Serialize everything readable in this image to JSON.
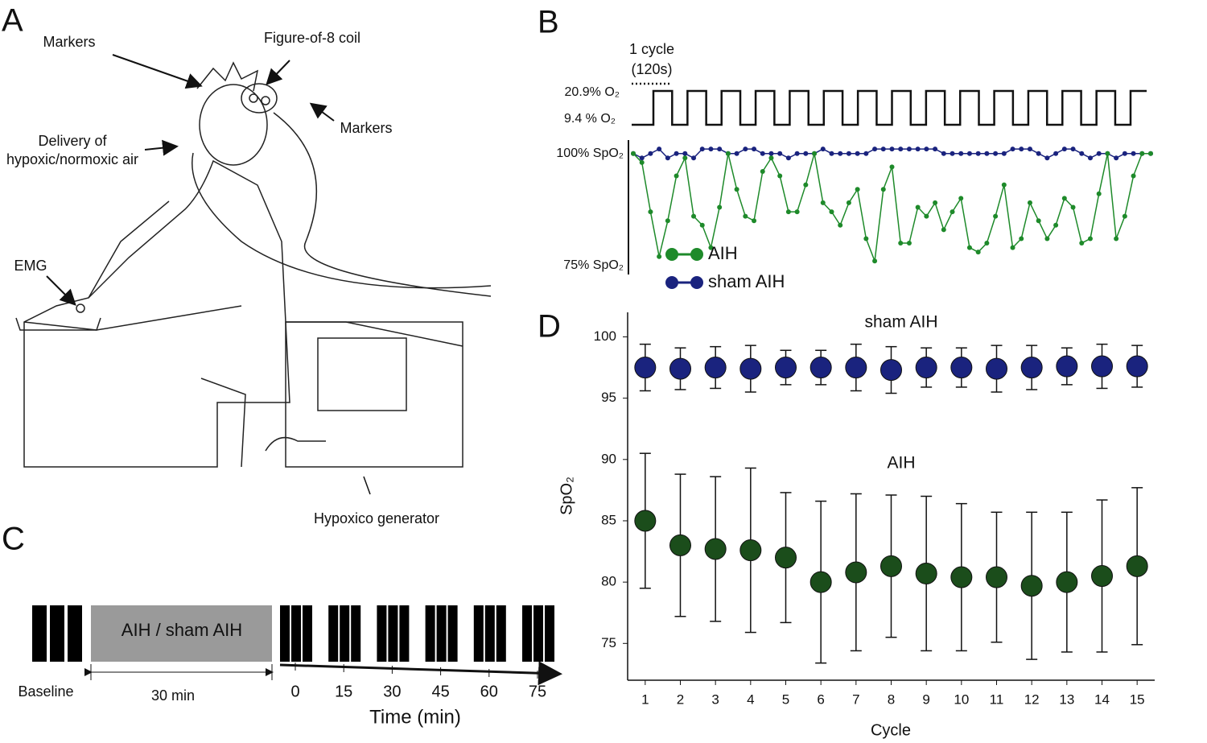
{
  "panel_a": {
    "letter": "A",
    "labels": [
      "Markers",
      "Figure-of-8  coil",
      "Markers",
      "Delivery  of",
      "hypoxic/normoxic air",
      "EMG",
      "Hypoxico generator"
    ]
  },
  "panel_c": {
    "letter": "C",
    "block_label": "AIH / sham AIH",
    "baseline": "Baseline",
    "duration": "30 min",
    "times": [
      "0",
      "15",
      "30",
      "45",
      "60",
      "75"
    ],
    "xlabel": "Time (min)"
  },
  "chart_data": [
    {
      "type": "line",
      "panel": "B",
      "annotations": [
        "1 cycle",
        "(120s)"
      ],
      "o2_labels": [
        "20.9% O₂",
        "9.4 % O₂"
      ],
      "cycles": 15,
      "ylim": [
        73,
        103
      ],
      "yticks": [
        {
          "value": 100,
          "label": "100% SpO₂"
        },
        {
          "value": 75,
          "label": "75% SpO₂"
        }
      ],
      "series": [
        {
          "name": "AIH",
          "color": "#1e8a2a",
          "values": [
            100,
            98,
            87,
            77,
            85,
            95,
            99,
            86,
            84,
            79,
            88,
            100,
            92,
            86,
            85,
            96,
            99,
            95,
            87,
            87,
            93,
            100,
            89,
            87,
            84,
            89,
            92,
            81,
            76,
            92,
            97,
            80,
            80,
            88,
            86,
            89,
            83,
            87,
            90,
            79,
            78,
            80,
            86,
            93,
            79,
            81,
            89,
            85,
            81,
            84,
            90,
            88,
            80,
            81,
            91,
            100,
            81,
            86,
            95,
            100,
            100
          ]
        },
        {
          "name": "sham AIH",
          "color": "#1a237e",
          "values": [
            100,
            99,
            100,
            101,
            99,
            100,
            100,
            99,
            101,
            101,
            101,
            100,
            100,
            101,
            101,
            100,
            100,
            100,
            99,
            100,
            100,
            100,
            101,
            100,
            100,
            100,
            100,
            100,
            101,
            101,
            101,
            101,
            101,
            101,
            101,
            101,
            100,
            100,
            100,
            100,
            100,
            100,
            100,
            100,
            101,
            101,
            101,
            100,
            99,
            100,
            101,
            101,
            100,
            99,
            100,
            100,
            99,
            100,
            100,
            100,
            100
          ]
        }
      ]
    },
    {
      "type": "errorscatter",
      "panel": "D",
      "x_label": "Cycle",
      "y_label": "SpO₂",
      "x": [
        1,
        2,
        3,
        4,
        5,
        6,
        7,
        8,
        9,
        10,
        11,
        12,
        13,
        14,
        15
      ],
      "xlim": [
        0.5,
        15.5
      ],
      "xticks": [
        1,
        2,
        3,
        4,
        5,
        6,
        7,
        8,
        9,
        10,
        11,
        12,
        13,
        14,
        15
      ],
      "ylim": [
        72,
        102
      ],
      "yticks": [
        75,
        80,
        85,
        90,
        95,
        100
      ],
      "series": [
        {
          "name": "sham AIH",
          "color": "#1a237e",
          "values": [
            97.5,
            97.4,
            97.5,
            97.4,
            97.5,
            97.5,
            97.5,
            97.3,
            97.5,
            97.5,
            97.4,
            97.5,
            97.6,
            97.6,
            97.6
          ],
          "errors": [
            1.9,
            1.7,
            1.7,
            1.9,
            1.4,
            1.4,
            1.9,
            1.9,
            1.6,
            1.6,
            1.9,
            1.8,
            1.5,
            1.8,
            1.7
          ]
        },
        {
          "name": "AIH",
          "color": "#1b4d1b",
          "values": [
            85,
            83,
            82.7,
            82.6,
            82,
            80,
            80.8,
            81.3,
            80.7,
            80.4,
            80.4,
            79.7,
            80,
            80.5,
            81.3
          ],
          "errors": [
            5.5,
            5.8,
            5.9,
            6.7,
            5.3,
            6.6,
            6.4,
            5.8,
            6.3,
            6,
            5.3,
            6,
            5.7,
            6.2,
            6.4
          ]
        }
      ]
    }
  ]
}
